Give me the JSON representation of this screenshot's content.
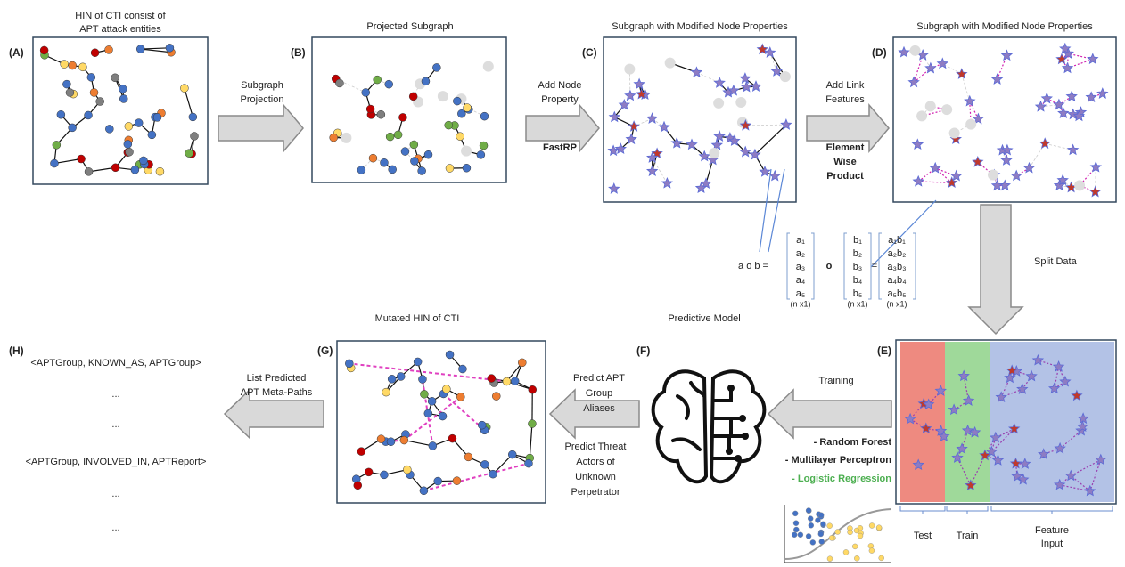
{
  "panels": {
    "a": {
      "label": "(A)",
      "title": [
        "HIN of CTI consist of",
        "APT attack entities"
      ]
    },
    "b": {
      "label": "(B)",
      "title": "Projected Subgraph"
    },
    "c": {
      "label": "(C)",
      "title": "Subgraph with Modified Node Properties"
    },
    "d": {
      "label": "(D)",
      "title": "Subgraph with Modified Node Properties"
    },
    "e": {
      "label": "(E)",
      "sections": {
        "test": "Test",
        "train": "Train",
        "feature": [
          "Feature",
          "Input"
        ]
      }
    },
    "f": {
      "label": "(F)",
      "title": "Predictive Model"
    },
    "g": {
      "label": "(G)",
      "title": "Mutated HIN of CTI"
    },
    "h": {
      "label": "(H)",
      "lines": [
        "<APTGroup, KNOWN_AS, APTGroup>",
        "...",
        "...",
        "<APTGroup, INVOLVED_IN, APTReport>",
        "...",
        "..."
      ]
    }
  },
  "steps": {
    "projection": [
      "Subgraph",
      "Projection"
    ],
    "node_property": {
      "lines": [
        "Add Node",
        "Property"
      ],
      "method": "FastRP"
    },
    "link_features": {
      "lines": [
        "Add Link",
        "Features"
      ],
      "method": [
        "Element",
        "Wise",
        "Product"
      ]
    },
    "split": "Split Data",
    "training": {
      "label": "Training",
      "models": [
        "- Random Forest",
        "- Multilayer Perceptron",
        "- Logistic Regression"
      ]
    },
    "predict_aliases": [
      "Predict APT",
      "Group",
      "Aliases"
    ],
    "predict_actors": [
      "Predict Threat",
      "Actors of",
      "Unknown",
      "Perpetrator"
    ],
    "list_paths": [
      "List Predicted",
      "APT Meta-Paths"
    ]
  },
  "formula": {
    "lhs": "a o b =",
    "a": [
      "a₁",
      "a₂",
      "a₃",
      "a₄",
      "a₅"
    ],
    "op": "o",
    "b": [
      "b₁",
      "b₂",
      "b₃",
      "b₄",
      "b₅"
    ],
    "eq": "=",
    "ab": [
      "a₁b₁",
      "a₂b₂",
      "a₃b₃",
      "a₄b₄",
      "a₅b₅"
    ],
    "dims": [
      "(n x1)",
      "(n x1)",
      "(n x1)"
    ]
  }
}
